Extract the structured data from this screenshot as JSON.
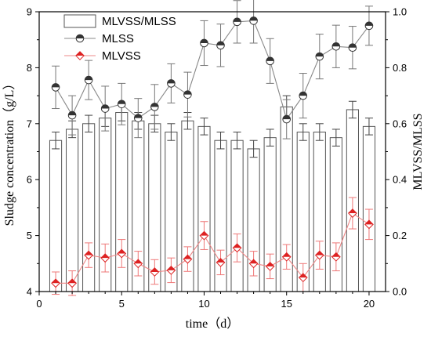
{
  "chart_data": {
    "type": "bar",
    "x": [
      1,
      2,
      3,
      4,
      5,
      6,
      7,
      8,
      9,
      10,
      11,
      12,
      13,
      14,
      15,
      16,
      17,
      18,
      19,
      20
    ],
    "xlabel": "time（d）",
    "ylabel_left": "Sludge concentration（g/L）",
    "ylabel_right": "MLVSS/MLSS",
    "xlim": [
      0,
      21
    ],
    "ylim_left": [
      4,
      9
    ],
    "ylim_right": [
      0,
      1.0
    ],
    "x_ticks": [
      "0",
      "5",
      "10",
      "15",
      "20"
    ],
    "y_left_ticks": [
      "4",
      "5",
      "6",
      "7",
      "8",
      "9"
    ],
    "y_right_ticks": [
      "0.0",
      "0.2",
      "0.4",
      "0.6",
      "0.8",
      "1.0"
    ],
    "legend_position": "top-left",
    "grid": false,
    "series": [
      {
        "name": "MLVSS/MLSS",
        "kind": "bar",
        "axis": "right",
        "color": "#555555",
        "values": [
          0.54,
          0.58,
          0.6,
          0.62,
          0.64,
          0.61,
          0.6,
          0.57,
          0.61,
          0.59,
          0.54,
          0.54,
          0.51,
          0.55,
          0.66,
          0.57,
          0.57,
          0.55,
          0.65,
          0.59
        ],
        "errors": [
          0.03,
          0.03,
          0.03,
          0.03,
          0.03,
          0.03,
          0.03,
          0.03,
          0.03,
          0.03,
          0.03,
          0.03,
          0.03,
          0.03,
          0.04,
          0.03,
          0.03,
          0.03,
          0.03,
          0.03
        ]
      },
      {
        "name": "MLSS",
        "kind": "line",
        "axis": "left",
        "color": "#888888",
        "marker_color": "#333333",
        "values": [
          7.65,
          7.15,
          7.78,
          7.27,
          7.35,
          7.1,
          7.3,
          7.72,
          7.52,
          8.44,
          8.4,
          8.82,
          8.84,
          8.12,
          7.08,
          7.5,
          8.2,
          8.38,
          8.36,
          8.75
        ],
        "errors": [
          0.38,
          0.35,
          0.35,
          0.4,
          0.37,
          0.35,
          0.4,
          0.35,
          0.4,
          0.4,
          0.38,
          0.38,
          0.4,
          0.4,
          0.35,
          0.4,
          0.4,
          0.38,
          0.38,
          0.35
        ]
      },
      {
        "name": "MLVSS",
        "kind": "line",
        "axis": "left",
        "color": "#ee8888",
        "marker_color": "#dd2222",
        "values": [
          4.15,
          4.15,
          4.65,
          4.6,
          4.68,
          4.5,
          4.35,
          4.38,
          4.58,
          5.0,
          4.52,
          4.78,
          4.5,
          4.45,
          4.62,
          4.25,
          4.65,
          4.62,
          5.4,
          5.2
        ],
        "errors": [
          0.2,
          0.22,
          0.22,
          0.25,
          0.25,
          0.22,
          0.22,
          0.22,
          0.22,
          0.25,
          0.22,
          0.25,
          0.22,
          0.22,
          0.22,
          0.25,
          0.25,
          0.25,
          0.28,
          0.27
        ]
      }
    ]
  }
}
